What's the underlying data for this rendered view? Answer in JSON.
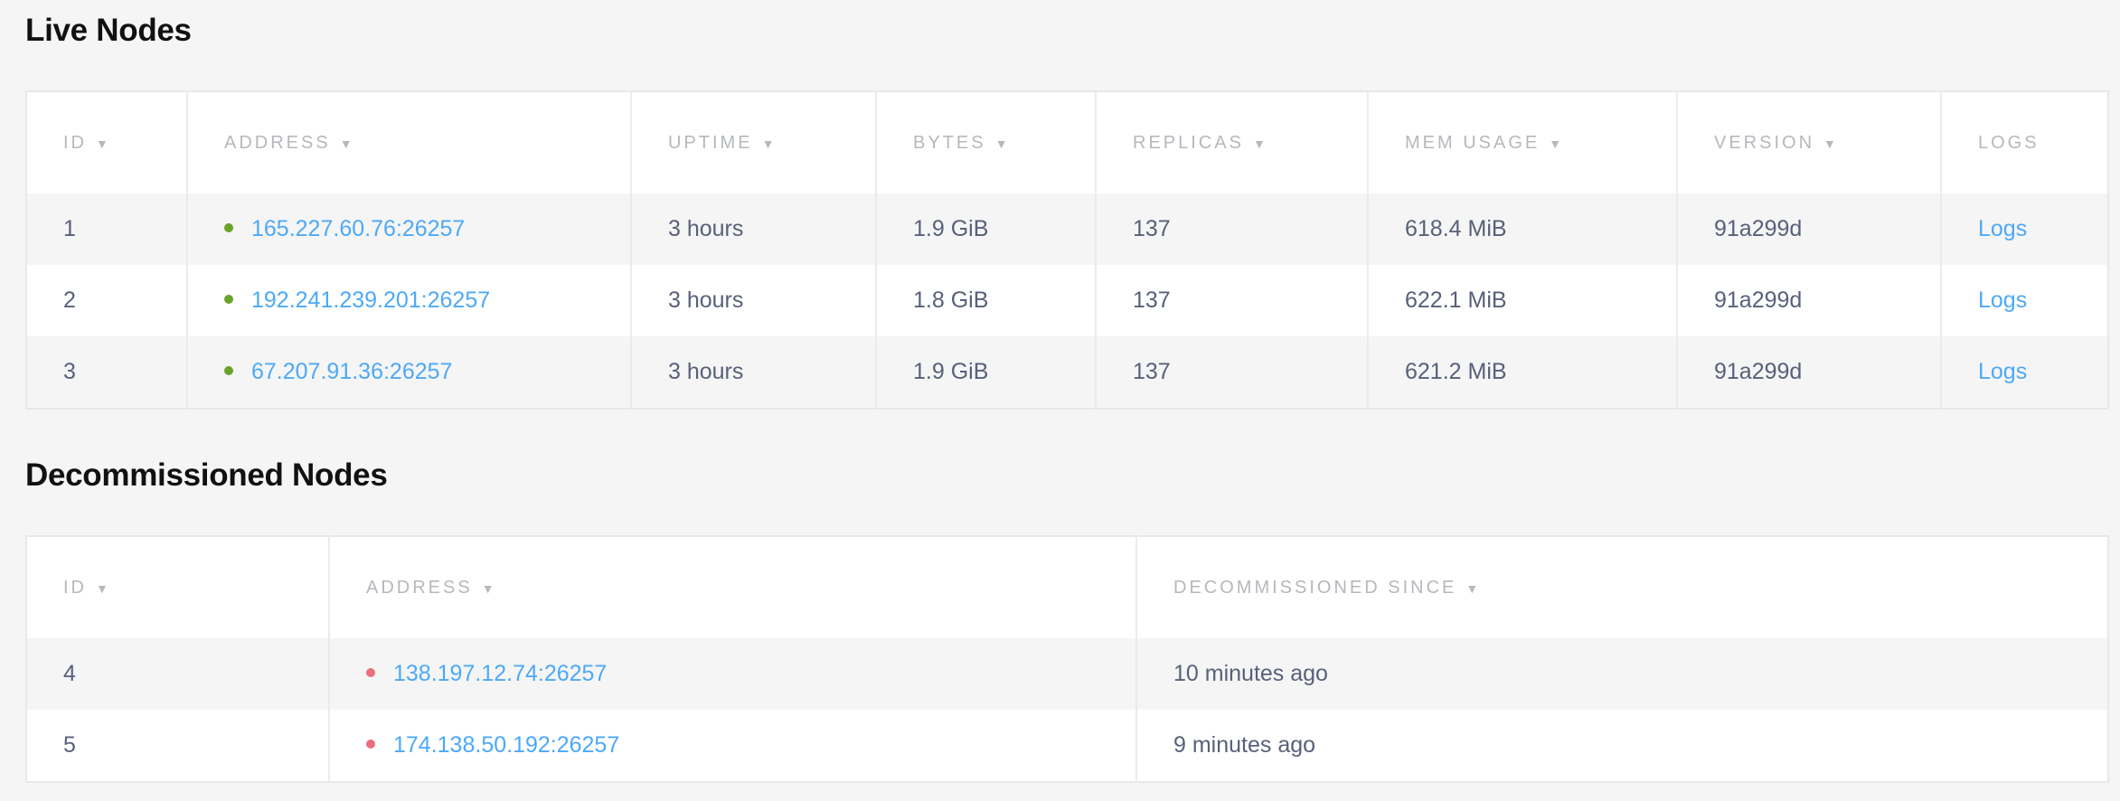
{
  "live": {
    "title": "Live Nodes",
    "columns": [
      {
        "label": "ID",
        "sortable": true
      },
      {
        "label": "ADDRESS",
        "sortable": true
      },
      {
        "label": "UPTIME",
        "sortable": true
      },
      {
        "label": "BYTES",
        "sortable": true
      },
      {
        "label": "REPLICAS",
        "sortable": true
      },
      {
        "label": "MEM USAGE",
        "sortable": true
      },
      {
        "label": "VERSION",
        "sortable": true
      },
      {
        "label": "LOGS",
        "sortable": false
      }
    ],
    "rows": [
      {
        "id": "1",
        "address": "165.227.60.76:26257",
        "uptime": "3 hours",
        "bytes": "1.9 GiB",
        "replicas": "137",
        "mem_usage": "618.4 MiB",
        "version": "91a299d",
        "logs": "Logs"
      },
      {
        "id": "2",
        "address": "192.241.239.201:26257",
        "uptime": "3 hours",
        "bytes": "1.8 GiB",
        "replicas": "137",
        "mem_usage": "622.1 MiB",
        "version": "91a299d",
        "logs": "Logs"
      },
      {
        "id": "3",
        "address": "67.207.91.36:26257",
        "uptime": "3 hours",
        "bytes": "1.9 GiB",
        "replicas": "137",
        "mem_usage": "621.2 MiB",
        "version": "91a299d",
        "logs": "Logs"
      }
    ],
    "status_color": "#6aa329"
  },
  "decommissioned": {
    "title": "Decommissioned Nodes",
    "columns": [
      {
        "label": "ID",
        "sortable": true
      },
      {
        "label": "ADDRESS",
        "sortable": true
      },
      {
        "label": "DECOMMISSIONED SINCE",
        "sortable": true
      }
    ],
    "rows": [
      {
        "id": "4",
        "address": "138.197.12.74:26257",
        "since": "10 minutes ago"
      },
      {
        "id": "5",
        "address": "174.138.50.192:26257",
        "since": "9 minutes ago"
      }
    ],
    "status_color": "#ea6f7b"
  },
  "sort_icon": "caret-down-icon",
  "status_icon": "status-dot-icon"
}
